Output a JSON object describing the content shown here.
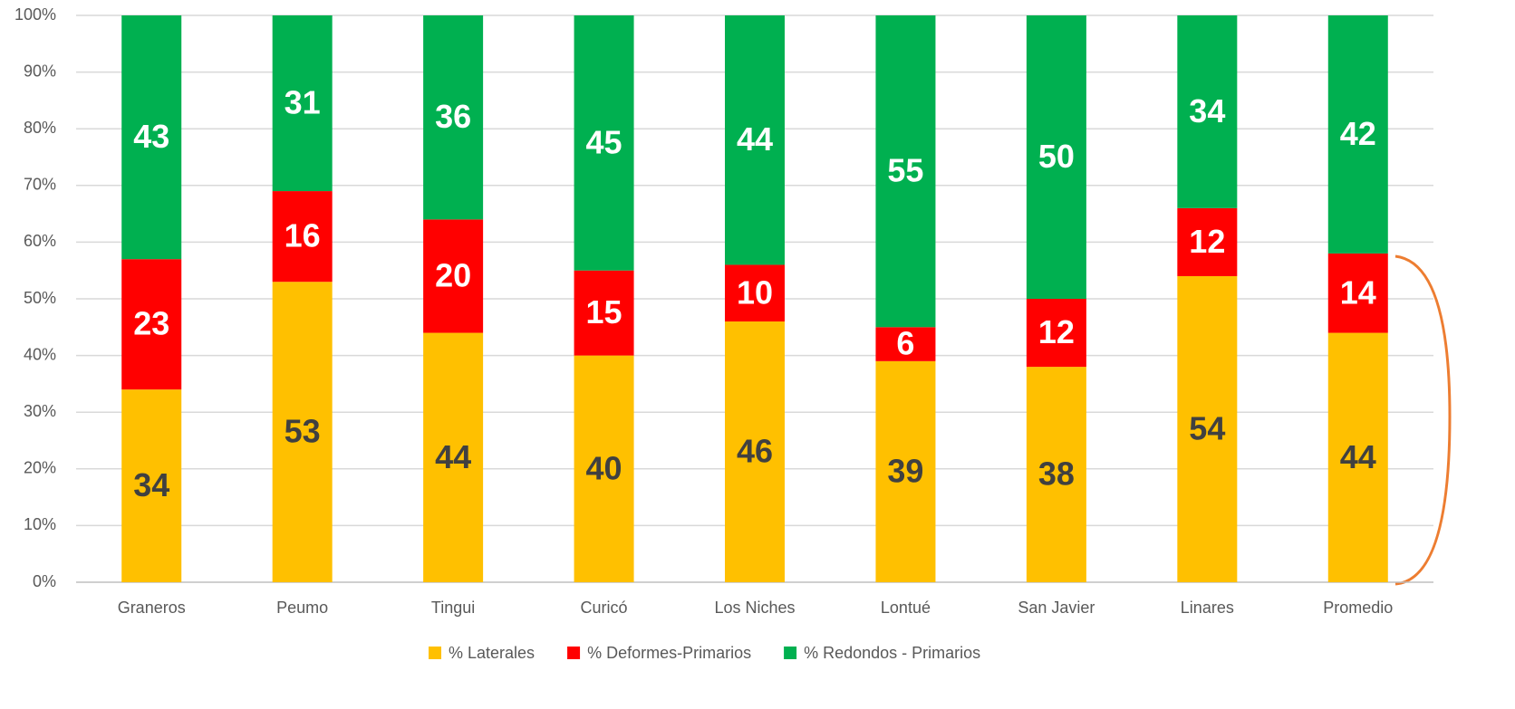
{
  "chart_data": {
    "type": "stacked_bar",
    "categories": [
      "Graneros",
      "Peumo",
      "Tingui",
      "Curicó",
      "Los Niches",
      "Lontué",
      "San Javier",
      "Linares",
      "Promedio"
    ],
    "series": [
      {
        "name": "% Laterales",
        "color": "#FFC000",
        "label_color": "#404040",
        "values": [
          34,
          53,
          44,
          40,
          46,
          39,
          38,
          54,
          44
        ]
      },
      {
        "name": "% Deformes-Primarios",
        "color": "#FF0000",
        "label_color": "#FFFFFF",
        "values": [
          23,
          16,
          20,
          15,
          10,
          6,
          12,
          12,
          14
        ]
      },
      {
        "name": "% Redondos - Primarios",
        "color": "#00B050",
        "label_color": "#FFFFFF",
        "values": [
          43,
          31,
          36,
          45,
          44,
          55,
          50,
          34,
          42
        ]
      }
    ],
    "ylim": [
      0,
      100
    ],
    "yticks": [
      {
        "value": 0,
        "label": "0%"
      },
      {
        "value": 10,
        "label": "10%"
      },
      {
        "value": 20,
        "label": "20%"
      },
      {
        "value": 30,
        "label": "30%"
      },
      {
        "value": 40,
        "label": "40%"
      },
      {
        "value": 50,
        "label": "50%"
      },
      {
        "value": 60,
        "label": "60%"
      },
      {
        "value": 70,
        "label": "70%"
      },
      {
        "value": 80,
        "label": "80%"
      },
      {
        "value": 90,
        "label": "90%"
      },
      {
        "value": 100,
        "label": "100%"
      }
    ],
    "grid": true,
    "legend": "bottom"
  }
}
